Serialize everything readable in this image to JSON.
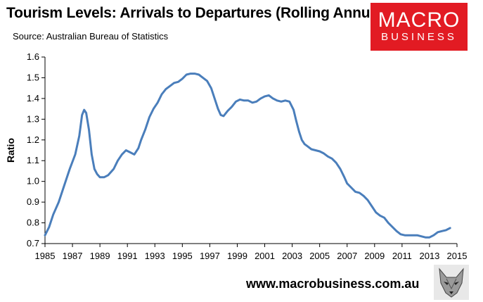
{
  "header": {
    "title": "Tourism Levels: Arrivals to Departures (Rolling Annual)",
    "source": "Source: Australian Bureau of Statistics"
  },
  "logo": {
    "line1": "MACRO",
    "line2": "BUSINESS",
    "color": "#e21b23"
  },
  "footer": {
    "url": "www.macrobusiness.com.au",
    "mascot_icon": "wolf-icon"
  },
  "chart_data": {
    "type": "line",
    "title": "Tourism Levels: Arrivals to Departures (Rolling Annual)",
    "xlabel": "",
    "ylabel": "Ratio",
    "xlim": [
      1985,
      2015
    ],
    "ylim": [
      0.7,
      1.6
    ],
    "x_ticks": [
      "1985",
      "1987",
      "1989",
      "1991",
      "1993",
      "1995",
      "1997",
      "1999",
      "2001",
      "2003",
      "2005",
      "2007",
      "2009",
      "2011",
      "2013",
      "2015"
    ],
    "y_ticks": [
      "0.7",
      "0.8",
      "0.9",
      "1.0",
      "1.1",
      "1.2",
      "1.3",
      "1.4",
      "1.5",
      "1.6"
    ],
    "grid": false,
    "legend": "none",
    "series": [
      {
        "name": "Arrivals to Departures",
        "color": "#4a7ebb",
        "x": [
          1985.0,
          1985.3,
          1985.6,
          1986.0,
          1986.4,
          1986.8,
          1987.2,
          1987.5,
          1987.7,
          1987.85,
          1988.0,
          1988.2,
          1988.4,
          1988.6,
          1988.8,
          1989.0,
          1989.3,
          1989.6,
          1990.0,
          1990.3,
          1990.6,
          1990.9,
          1991.2,
          1991.5,
          1991.8,
          1992.0,
          1992.3,
          1992.6,
          1992.9,
          1993.2,
          1993.5,
          1993.8,
          1994.1,
          1994.4,
          1994.7,
          1995.0,
          1995.3,
          1995.6,
          1995.9,
          1996.2,
          1996.5,
          1996.8,
          1997.1,
          1997.4,
          1997.6,
          1997.8,
          1998.0,
          1998.3,
          1998.6,
          1998.9,
          1999.2,
          1999.5,
          1999.8,
          2000.1,
          2000.4,
          2000.7,
          2001.0,
          2001.3,
          2001.6,
          2001.9,
          2002.2,
          2002.5,
          2002.8,
          2003.1,
          2003.3,
          2003.5,
          2003.7,
          2003.9,
          2004.1,
          2004.4,
          2004.7,
          2005.0,
          2005.3,
          2005.6,
          2005.9,
          2006.2,
          2006.5,
          2006.8,
          2007.0,
          2007.3,
          2007.6,
          2007.9,
          2008.2,
          2008.5,
          2008.8,
          2009.1,
          2009.4,
          2009.7,
          2010.0,
          2010.3,
          2010.6,
          2010.9,
          2011.2,
          2011.5,
          2011.8,
          2012.1,
          2012.4,
          2012.7,
          2013.0,
          2013.3,
          2013.6,
          2013.9,
          2014.2,
          2014.5
        ],
        "values": [
          0.74,
          0.78,
          0.84,
          0.9,
          0.98,
          1.06,
          1.13,
          1.22,
          1.32,
          1.345,
          1.33,
          1.25,
          1.13,
          1.06,
          1.035,
          1.02,
          1.02,
          1.03,
          1.06,
          1.1,
          1.13,
          1.15,
          1.14,
          1.13,
          1.16,
          1.2,
          1.25,
          1.31,
          1.35,
          1.38,
          1.42,
          1.445,
          1.46,
          1.475,
          1.48,
          1.495,
          1.515,
          1.52,
          1.52,
          1.515,
          1.5,
          1.485,
          1.45,
          1.39,
          1.35,
          1.32,
          1.315,
          1.34,
          1.36,
          1.385,
          1.395,
          1.39,
          1.39,
          1.38,
          1.385,
          1.4,
          1.41,
          1.415,
          1.4,
          1.39,
          1.385,
          1.39,
          1.385,
          1.345,
          1.29,
          1.24,
          1.2,
          1.18,
          1.17,
          1.155,
          1.15,
          1.145,
          1.135,
          1.12,
          1.11,
          1.09,
          1.06,
          1.02,
          0.99,
          0.97,
          0.95,
          0.945,
          0.93,
          0.91,
          0.88,
          0.85,
          0.835,
          0.825,
          0.8,
          0.78,
          0.76,
          0.745,
          0.74,
          0.74,
          0.74,
          0.74,
          0.735,
          0.73,
          0.73,
          0.74,
          0.755,
          0.76,
          0.765,
          0.775
        ]
      }
    ]
  }
}
